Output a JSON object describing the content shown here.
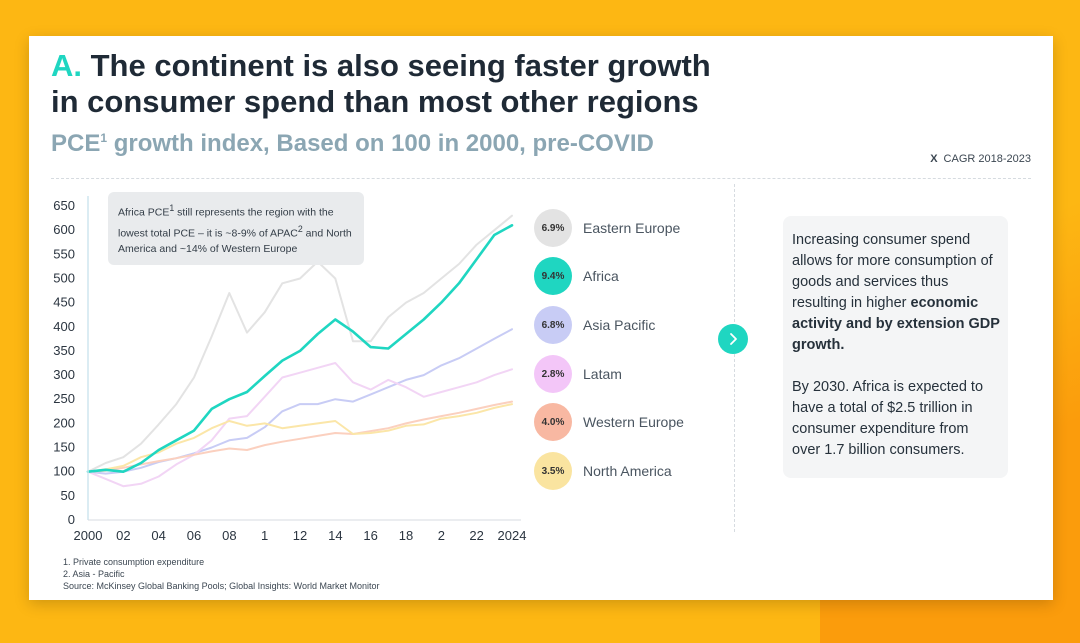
{
  "header": {
    "letter": "A.",
    "title_line1": "The continent is also seeing faster growth",
    "title_line2": "in consumer spend than most other regions",
    "subtitle_pre": "PCE",
    "subtitle_sup": "1",
    "subtitle_post": " growth index, Based on 100 in 2000, pre-COVID",
    "cagr_marker": "X",
    "cagr_label": "CAGR 2018-2023"
  },
  "annotation": {
    "t1": "Africa PCE",
    "s1": "1",
    "t2": " still represents the region with the lowest total PCE – it is ~8-9% of APAC",
    "s2": "2",
    "t3": " and North America and ~14% of Western Europe"
  },
  "chart_data": {
    "type": "line",
    "title": "PCE growth index, Based on 100 in 2000, pre-COVID",
    "xlabel": "",
    "ylabel": "",
    "ylim": [
      0,
      650
    ],
    "yticks": [
      0,
      50,
      100,
      150,
      200,
      250,
      300,
      350,
      400,
      450,
      500,
      550,
      600,
      650
    ],
    "x": [
      2000,
      2001,
      2002,
      2003,
      2004,
      2005,
      2006,
      2007,
      2008,
      2009,
      2010,
      2011,
      2012,
      2013,
      2014,
      2015,
      2016,
      2017,
      2018,
      2019,
      2020,
      2021,
      2022,
      2023,
      2024
    ],
    "xtick_values": [
      2000,
      2002,
      2004,
      2006,
      2008,
      2010,
      2012,
      2014,
      2016,
      2018,
      2020,
      2022,
      2024
    ],
    "xtick_labels": [
      "2000",
      "02",
      "04",
      "06",
      "08",
      "1",
      "12",
      "14",
      "16",
      "18",
      "2",
      "22",
      "2024"
    ],
    "series": [
      {
        "name": "Eastern Europe",
        "cagr": "6.9%",
        "color": "#e3e3e3",
        "bubble": "#e3e3e3",
        "values": [
          100,
          118,
          130,
          158,
          198,
          240,
          295,
          380,
          470,
          388,
          430,
          490,
          500,
          535,
          500,
          370,
          370,
          420,
          450,
          470,
          500,
          530,
          570,
          600,
          630
        ]
      },
      {
        "name": "Africa",
        "cagr": "9.4%",
        "color": "#1fd6c1",
        "bubble": "#1fd6c1",
        "values": [
          100,
          104,
          100,
          118,
          145,
          165,
          185,
          230,
          250,
          265,
          298,
          330,
          350,
          385,
          415,
          390,
          358,
          355,
          385,
          415,
          450,
          490,
          540,
          590,
          610
        ]
      },
      {
        "name": "Asia Pacific",
        "cagr": "6.8%",
        "color": "#c8ccf5",
        "bubble": "#c8ccf5",
        "values": [
          100,
          96,
          100,
          108,
          120,
          128,
          138,
          150,
          165,
          170,
          192,
          225,
          240,
          240,
          250,
          245,
          260,
          275,
          290,
          300,
          320,
          335,
          355,
          375,
          395
        ]
      },
      {
        "name": "Latam",
        "cagr": "2.8%",
        "color": "#f2d5f5",
        "bubble": "#f3c6f8",
        "values": [
          100,
          85,
          70,
          75,
          90,
          115,
          135,
          165,
          210,
          215,
          255,
          295,
          305,
          315,
          325,
          285,
          270,
          290,
          275,
          255,
          265,
          275,
          285,
          300,
          312
        ]
      },
      {
        "name": "Western Europe",
        "cagr": "4.0%",
        "color": "#fbd0bf",
        "bubble": "#f8b8a2",
        "values": [
          100,
          102,
          108,
          115,
          122,
          128,
          135,
          142,
          148,
          145,
          155,
          162,
          168,
          174,
          180,
          178,
          184,
          190,
          200,
          208,
          215,
          222,
          230,
          238,
          245
        ]
      },
      {
        "name": "North America",
        "cagr": "3.5%",
        "color": "#fbe6a8",
        "bubble": "#fae4a0",
        "values": [
          100,
          105,
          112,
          130,
          140,
          158,
          170,
          190,
          205,
          195,
          200,
          190,
          195,
          200,
          205,
          178,
          180,
          185,
          195,
          198,
          210,
          215,
          222,
          232,
          240
        ]
      }
    ]
  },
  "info": {
    "p1_text": "Increasing consumer spend allows for more consumption of goods and services thus resulting in higher ",
    "p1_bold": "economic activity and by extension GDP growth.",
    "p2": "By 2030. Africa is expected to have a total of $2.5 trillion in consumer expenditure from over 1.7 billion consumers."
  },
  "footnotes": {
    "note1": "1.  Private consumption expenditure",
    "note2": "2.  Asia - Pacific",
    "source": "Source: McKinsey Global Banking Pools; Global Insights: World Market Monitor"
  },
  "colors": {
    "background": "#fdb713",
    "accent": "#1fd6c1",
    "title": "#1f2a36",
    "subtitle": "#8ba6b3"
  }
}
